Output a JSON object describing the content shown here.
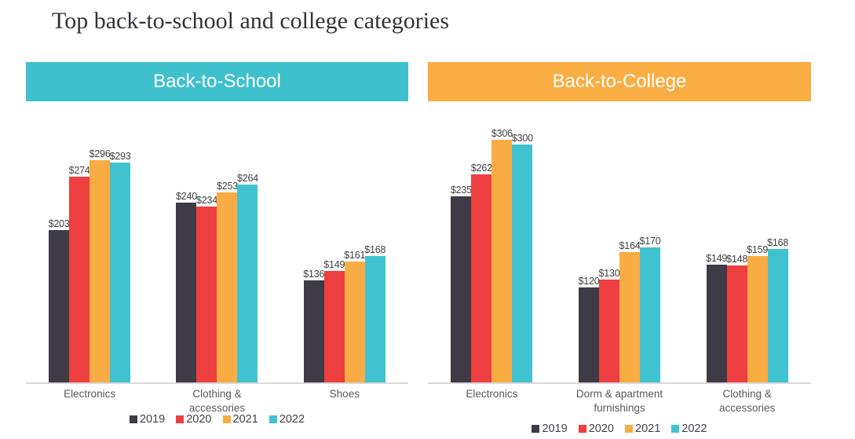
{
  "title": "Top back-to-school and college categories",
  "legend": [
    "2019",
    "2020",
    "2021",
    "2022"
  ],
  "colors": {
    "series": [
      "#3e3b46",
      "#ed3f3f",
      "#f9ac44",
      "#40c2d0"
    ],
    "header_school": "#3fc0cd",
    "header_college": "#f9ad43",
    "axis_line": "#d9d9d9",
    "value_label_text": "#404040",
    "category_text": "#595959"
  },
  "chart_data": [
    {
      "type": "bar",
      "title": "Back-to-School",
      "categories": [
        "Electronics",
        "Clothing & accessories",
        "Shoes"
      ],
      "series": [
        {
          "name": "2019",
          "values": [
            203,
            240,
            136
          ]
        },
        {
          "name": "2020",
          "values": [
            274,
            234,
            149
          ]
        },
        {
          "name": "2021",
          "values": [
            296,
            253,
            161
          ]
        },
        {
          "name": "2022",
          "values": [
            293,
            264,
            168
          ]
        }
      ],
      "value_prefix": "$",
      "data_labels": true,
      "axes": "hidden",
      "grid": false,
      "legend_position": "bottom"
    },
    {
      "type": "bar",
      "title": "Back-to-College",
      "categories": [
        "Electronics",
        "Dorm & apartment furnishings",
        "Clothing & accessories"
      ],
      "series": [
        {
          "name": "2019",
          "values": [
            235,
            120,
            149
          ]
        },
        {
          "name": "2020",
          "values": [
            262,
            130,
            148
          ]
        },
        {
          "name": "2021",
          "values": [
            306,
            164,
            159
          ]
        },
        {
          "name": "2022",
          "values": [
            300,
            170,
            168
          ]
        }
      ],
      "value_prefix": "$",
      "data_labels": true,
      "axes": "hidden",
      "grid": false,
      "legend_position": "bottom"
    }
  ]
}
